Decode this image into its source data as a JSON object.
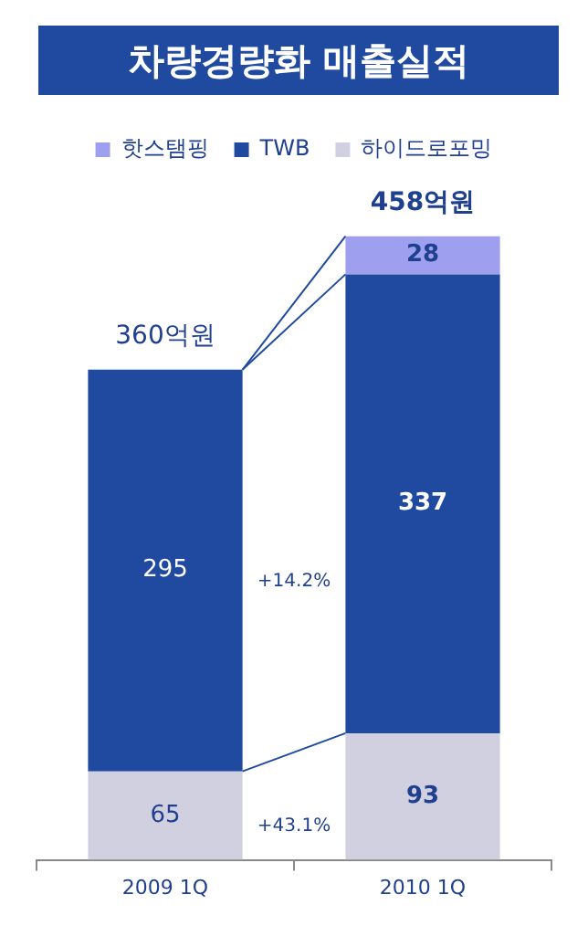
{
  "chart_data": {
    "type": "bar",
    "title": "차량경량화 매출실적",
    "categories": [
      "2009 1Q",
      "2010 1Q"
    ],
    "stacked": true,
    "series": [
      {
        "name": "하이드로포밍",
        "color": "#d0d0e0",
        "values": [
          65,
          93
        ]
      },
      {
        "name": "TWB",
        "color": "#1f4aa0",
        "values": [
          295,
          337
        ]
      },
      {
        "name": "핫스탬핑",
        "color": "#9f9ff0",
        "values": [
          null,
          28
        ]
      }
    ],
    "data_labels": true,
    "totals": [
      "360억원",
      "458억원"
    ],
    "annotations": [
      "+14.2%",
      "+43.1%"
    ],
    "legend": "top",
    "grid": false,
    "tick_labels": "x"
  }
}
